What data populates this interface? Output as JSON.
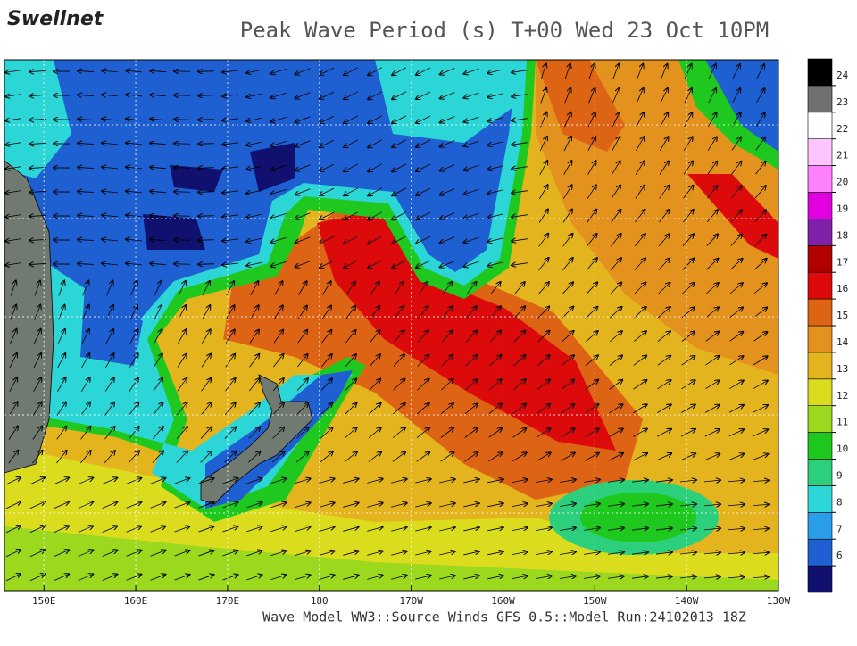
{
  "logo": "Swellnet",
  "title": "Peak Wave Period (s) T+00 Wed 23 Oct 10PM",
  "footer": "Wave Model WW3::Source Winds GFS 0.5::Model Run:24102013 18Z",
  "map": {
    "xlim": [
      145.7,
      230
    ],
    "xticks": [
      {
        "value": 150,
        "label": "150E"
      },
      {
        "value": 160,
        "label": "160E"
      },
      {
        "value": 170,
        "label": "170E"
      },
      180,
      {
        "value": 190,
        "label": "170W"
      },
      {
        "value": 200,
        "label": "160W"
      },
      {
        "value": 210,
        "label": "150W"
      },
      {
        "value": 220,
        "label": "140W"
      },
      {
        "value": 230,
        "label": "130W"
      }
    ]
  },
  "colorbar": {
    "ticks": [
      6,
      7,
      8,
      9,
      10,
      11,
      12,
      13,
      14,
      15,
      16,
      17,
      18,
      19,
      20,
      21,
      22,
      23,
      24
    ],
    "colors": [
      "#10106e",
      "#1e5fd2",
      "#2a9ee8",
      "#2cd6d6",
      "#2cd07c",
      "#1ec81e",
      "#9cd81e",
      "#dcdc1e",
      "#e4b41e",
      "#e4921e",
      "#dc6414",
      "#dc0a0a",
      "#b00000",
      "#8020a8",
      "#e000e0",
      "#ff80ff",
      "#ffc4ff",
      "#ffffff",
      "#707070",
      "#000000"
    ]
  }
}
